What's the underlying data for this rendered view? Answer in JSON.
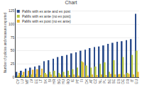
{
  "chart_data": {
    "type": "bar",
    "title": "Chart",
    "ylabel": "Number of policies and measures reported",
    "categories": [
      "CY",
      "LU",
      "MT",
      "LV",
      "EE",
      "LT",
      "SK",
      "SI",
      "HR",
      "BG",
      "HU",
      "RO",
      "IE",
      "PT",
      "FI",
      "DK",
      "AT",
      "CZ",
      "NL",
      "PL",
      "BE",
      "SE",
      "ES",
      "DE",
      "FR",
      "IT",
      "EU"
    ],
    "series": [
      {
        "name": "PaMs with ex ante and ex post",
        "color": "#2b4c8c",
        "values": [
          10,
          12,
          16,
          18,
          20,
          22,
          30,
          32,
          35,
          38,
          40,
          42,
          45,
          47,
          50,
          52,
          55,
          57,
          58,
          60,
          63,
          65,
          67,
          68,
          70,
          72,
          120
        ]
      },
      {
        "name": "PaMs with ex ante (no ex post)",
        "color": "#b5c642",
        "values": [
          3,
          4,
          2,
          5,
          6,
          4,
          8,
          10,
          12,
          8,
          10,
          12,
          15,
          18,
          30,
          22,
          18,
          20,
          25,
          28,
          10,
          32,
          5,
          38,
          8,
          42,
          50
        ]
      },
      {
        "name": "PaMs with ex post (no ex ante)",
        "color": "#e8b830",
        "values": [
          8,
          10,
          12,
          14,
          15,
          16,
          5,
          5,
          2,
          5,
          3,
          4,
          5,
          3,
          28,
          3,
          5,
          4,
          5,
          4,
          6,
          5,
          6,
          5,
          6,
          5,
          10
        ]
      }
    ],
    "ylim": [
      0,
      130
    ],
    "yticks": [
      0,
      25,
      50,
      75,
      100,
      125
    ],
    "grid": true,
    "legend": "upper left"
  }
}
